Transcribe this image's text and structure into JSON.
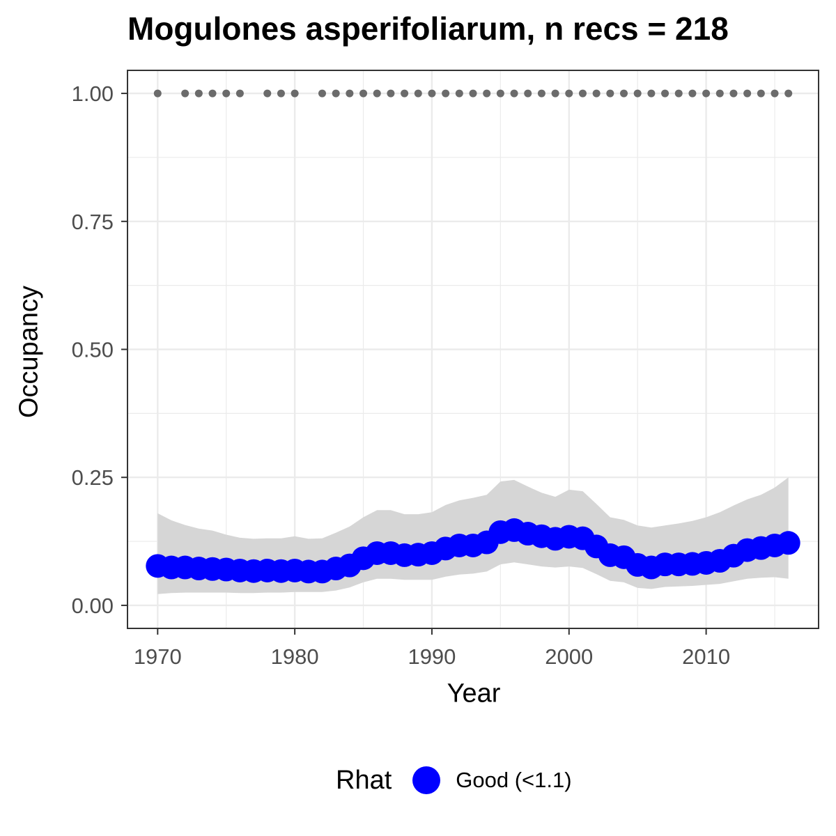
{
  "chart_data": {
    "type": "line",
    "title": "Mogulones asperifoliarum, n recs = 218",
    "xlabel": "Year",
    "ylabel": "Occupancy",
    "xlim": [
      1967.8,
      2018.2
    ],
    "ylim": [
      -0.045,
      1.045
    ],
    "x_ticks": [
      1970,
      1980,
      1990,
      2000,
      2010
    ],
    "x_tick_labels": [
      "1970",
      "1980",
      "1990",
      "2000",
      "2010"
    ],
    "y_ticks": [
      0.0,
      0.25,
      0.5,
      0.75,
      1.0
    ],
    "y_tick_labels": [
      "0.00",
      "0.25",
      "0.50",
      "0.75",
      "1.00"
    ],
    "grid": true,
    "legend": {
      "title": "Rhat",
      "position": "bottom",
      "entries": [
        {
          "label": "Good (<1.1)",
          "color": "#0000ff"
        }
      ]
    },
    "colors": {
      "mean_line": "#0000ff",
      "ci_band": "#d6d6d6",
      "record_dots": "#6b6b6b",
      "grid": "#ebebeb",
      "axis": "#333333"
    },
    "series": [
      {
        "name": "mean occupancy",
        "x": [
          1970,
          1971,
          1972,
          1973,
          1974,
          1975,
          1976,
          1977,
          1978,
          1979,
          1980,
          1981,
          1982,
          1983,
          1984,
          1985,
          1986,
          1987,
          1988,
          1989,
          1990,
          1991,
          1992,
          1993,
          1994,
          1995,
          1996,
          1997,
          1998,
          1999,
          2000,
          2001,
          2002,
          2003,
          2004,
          2005,
          2006,
          2007,
          2008,
          2009,
          2010,
          2011,
          2012,
          2013,
          2014,
          2015,
          2016
        ],
        "values": [
          0.077,
          0.074,
          0.074,
          0.072,
          0.071,
          0.07,
          0.068,
          0.067,
          0.068,
          0.067,
          0.068,
          0.066,
          0.066,
          0.072,
          0.078,
          0.092,
          0.102,
          0.102,
          0.098,
          0.099,
          0.102,
          0.111,
          0.117,
          0.117,
          0.123,
          0.143,
          0.147,
          0.14,
          0.135,
          0.13,
          0.134,
          0.131,
          0.115,
          0.098,
          0.094,
          0.079,
          0.074,
          0.08,
          0.08,
          0.081,
          0.083,
          0.087,
          0.097,
          0.108,
          0.112,
          0.117,
          0.122
        ]
      },
      {
        "name": "lower 95% CI",
        "x": [
          1970,
          1971,
          1972,
          1973,
          1974,
          1975,
          1976,
          1977,
          1978,
          1979,
          1980,
          1981,
          1982,
          1983,
          1984,
          1985,
          1986,
          1987,
          1988,
          1989,
          1990,
          1991,
          1992,
          1993,
          1994,
          1995,
          1996,
          1997,
          1998,
          1999,
          2000,
          2001,
          2002,
          2003,
          2004,
          2005,
          2006,
          2007,
          2008,
          2009,
          2010,
          2011,
          2012,
          2013,
          2014,
          2015,
          2016
        ],
        "values": [
          0.022,
          0.024,
          0.025,
          0.025,
          0.025,
          0.025,
          0.024,
          0.024,
          0.025,
          0.025,
          0.026,
          0.026,
          0.026,
          0.029,
          0.035,
          0.045,
          0.052,
          0.052,
          0.05,
          0.05,
          0.05,
          0.056,
          0.06,
          0.062,
          0.066,
          0.08,
          0.084,
          0.08,
          0.076,
          0.074,
          0.076,
          0.073,
          0.061,
          0.048,
          0.045,
          0.034,
          0.032,
          0.036,
          0.037,
          0.038,
          0.04,
          0.042,
          0.047,
          0.052,
          0.054,
          0.055,
          0.052
        ]
      },
      {
        "name": "upper 95% CI",
        "x": [
          1970,
          1971,
          1972,
          1973,
          1974,
          1975,
          1976,
          1977,
          1978,
          1979,
          1980,
          1981,
          1982,
          1983,
          1984,
          1985,
          1986,
          1987,
          1988,
          1989,
          1990,
          1991,
          1992,
          1993,
          1994,
          1995,
          1996,
          1997,
          1998,
          1999,
          2000,
          2001,
          2002,
          2003,
          2004,
          2005,
          2006,
          2007,
          2008,
          2009,
          2010,
          2011,
          2012,
          2013,
          2014,
          2015,
          2016
        ],
        "values": [
          0.18,
          0.166,
          0.157,
          0.15,
          0.146,
          0.138,
          0.132,
          0.13,
          0.131,
          0.131,
          0.135,
          0.13,
          0.131,
          0.142,
          0.154,
          0.172,
          0.186,
          0.186,
          0.178,
          0.178,
          0.182,
          0.196,
          0.205,
          0.21,
          0.216,
          0.242,
          0.245,
          0.232,
          0.22,
          0.212,
          0.226,
          0.223,
          0.198,
          0.172,
          0.167,
          0.156,
          0.152,
          0.156,
          0.16,
          0.165,
          0.172,
          0.182,
          0.195,
          0.207,
          0.216,
          0.23,
          0.25
        ]
      },
      {
        "name": "years with records",
        "x": [
          1970,
          1972,
          1973,
          1974,
          1975,
          1976,
          1978,
          1979,
          1980,
          1982,
          1983,
          1984,
          1985,
          1986,
          1987,
          1988,
          1989,
          1990,
          1991,
          1992,
          1993,
          1994,
          1995,
          1996,
          1997,
          1998,
          1999,
          2000,
          2001,
          2002,
          2003,
          2004,
          2005,
          2006,
          2007,
          2008,
          2009,
          2010,
          2011,
          2012,
          2013,
          2014,
          2015,
          2016
        ],
        "values": [
          1,
          1,
          1,
          1,
          1,
          1,
          1,
          1,
          1,
          1,
          1,
          1,
          1,
          1,
          1,
          1,
          1,
          1,
          1,
          1,
          1,
          1,
          1,
          1,
          1,
          1,
          1,
          1,
          1,
          1,
          1,
          1,
          1,
          1,
          1,
          1,
          1,
          1,
          1,
          1,
          1,
          1,
          1,
          1
        ]
      }
    ]
  }
}
